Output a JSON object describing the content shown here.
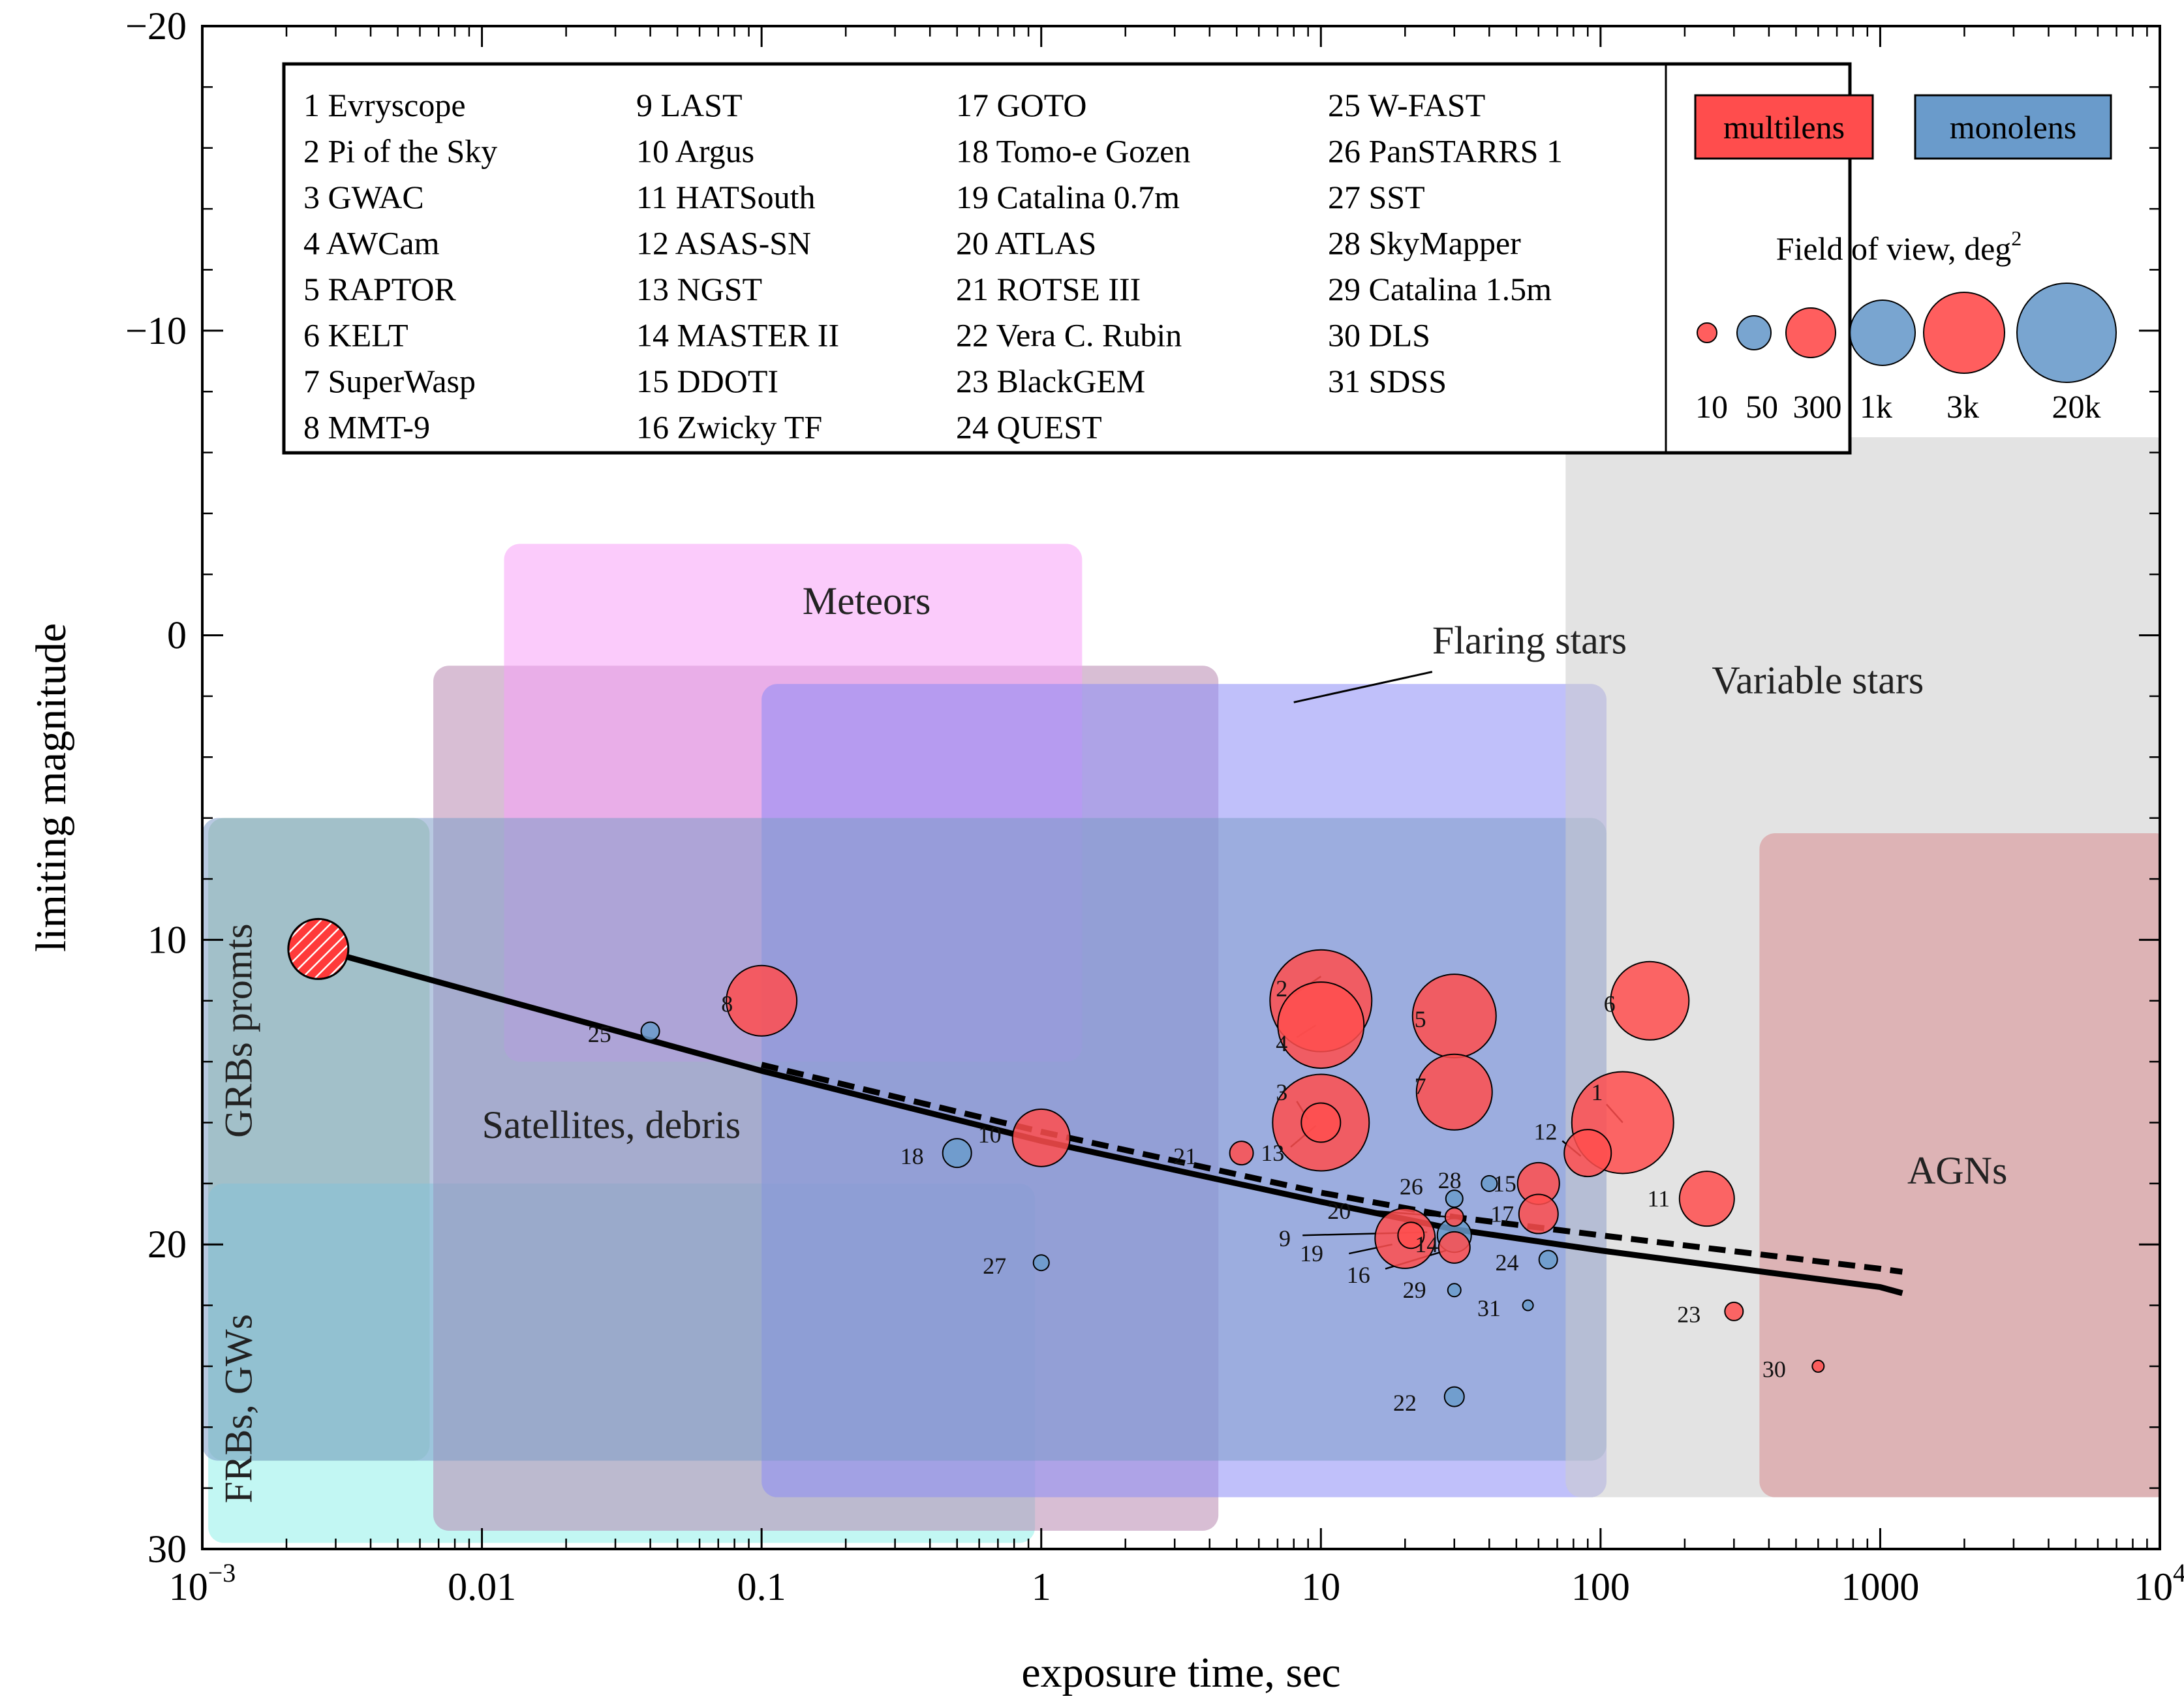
{
  "chart_data": {
    "type": "scatter",
    "title": "",
    "xlabel": "exposure time, sec",
    "ylabel": "limiting magnitude",
    "xscale": "log",
    "xlim": [
      0.001,
      10000
    ],
    "ylim": [
      30,
      -20
    ],
    "x_ticks": [
      {
        "value": 0.001,
        "label": "10",
        "sup": "−3"
      },
      {
        "value": 0.01,
        "label": "0.01",
        "sup": ""
      },
      {
        "value": 0.1,
        "label": "0.1",
        "sup": ""
      },
      {
        "value": 1,
        "label": "1",
        "sup": ""
      },
      {
        "value": 10,
        "label": "10",
        "sup": ""
      },
      {
        "value": 100,
        "label": "100",
        "sup": ""
      },
      {
        "value": 1000,
        "label": "1000",
        "sup": ""
      },
      {
        "value": 10000,
        "label": "10",
        "sup": "4"
      }
    ],
    "y_ticks": [
      {
        "value": -20,
        "label": "−20"
      },
      {
        "value": -10,
        "label": "−10"
      },
      {
        "value": 0,
        "label": "0"
      },
      {
        "value": 10,
        "label": "10"
      },
      {
        "value": 20,
        "label": "20"
      },
      {
        "value": 30,
        "label": "30"
      }
    ],
    "regions": [
      {
        "name": "GRBs promts",
        "x": [
          0.00105,
          0.0065
        ],
        "y": [
          6,
          27.1
        ],
        "color": "#a8d8a0",
        "label_x": 0.0015,
        "label_y": 16.5,
        "vertical": true
      },
      {
        "name": "FRBs, GWs",
        "x": [
          0.00105,
          0.95
        ],
        "y": [
          18,
          29.8
        ],
        "color": "#8ff0ea",
        "label_x": 0.0015,
        "label_y": 28.5,
        "vertical": true
      },
      {
        "name": "Satellites, debris",
        "x": [
          0.0067,
          4.3
        ],
        "y": [
          1,
          29.4
        ],
        "color": "#b888b0",
        "label_x": 0.01,
        "label_y": 16.5,
        "vertical": false
      },
      {
        "name": "Meteors",
        "x": [
          0.012,
          1.4
        ],
        "y": [
          -3,
          14
        ],
        "color": "#f7a0f7",
        "label_x": 0.14,
        "label_y": -0.7,
        "vertical": false
      },
      {
        "name": "Flaring stars",
        "x": [
          0.1,
          105
        ],
        "y": [
          1.6,
          28.3
        ],
        "color": "#8c8cf5",
        "label_x": 25,
        "label_y": 0.6,
        "vertical": false
      },
      {
        "name": "",
        "x": [
          0.001,
          105
        ],
        "y": [
          6,
          27.1
        ],
        "color": "#7e9cc8",
        "label_x": 0,
        "label_y": 0,
        "vertical": false
      },
      {
        "name": "Variable stars",
        "x": [
          75,
          11000
        ],
        "y": [
          -6.5,
          28.3
        ],
        "color": "#cccccc",
        "label_x": 250,
        "label_y": 1.9,
        "vertical": false
      },
      {
        "name": "AGNs",
        "x": [
          370,
          11000
        ],
        "y": [
          6.5,
          28.3
        ],
        "color": "#d88c90",
        "label_x": 1250,
        "label_y": 18,
        "vertical": false
      }
    ],
    "flaring_pointer": {
      "x": [
        25,
        8
      ],
      "y": [
        1.2,
        2.2
      ]
    },
    "series": [
      {
        "name": "fit (solid)",
        "style": "solid",
        "x": [
          0.0026,
          0.1,
          1,
          10,
          30,
          100,
          1000,
          1200
        ],
        "y": [
          10.3,
          14.3,
          16.6,
          18.6,
          19.5,
          20.2,
          21.4,
          21.6
        ]
      },
      {
        "name": "fit (dashed)",
        "style": "dashed",
        "x": [
          0.1,
          1,
          10,
          30,
          100,
          1000,
          1200
        ],
        "y": [
          14.1,
          16.3,
          18.3,
          19.1,
          19.7,
          20.8,
          20.9
        ]
      }
    ],
    "special_point": {
      "x": 0.0026,
      "y": 10.3,
      "r": 46,
      "note": "hatched"
    },
    "points": [
      {
        "id": "1",
        "name": "Evryscope",
        "x": 120,
        "y": 16,
        "type": "multilens",
        "r": 78,
        "lx": 102,
        "ly": 15.0,
        "px": [
          105,
          120
        ],
        "py": [
          15.4,
          16.0
        ]
      },
      {
        "id": "2",
        "name": "Pi of the Sky",
        "x": 10,
        "y": 12,
        "type": "multilens",
        "r": 78,
        "lx": 7.6,
        "ly": 11.6,
        "px": [
          8,
          10
        ],
        "py": [
          11.8,
          11.2
        ]
      },
      {
        "id": "3",
        "name": "GWAC",
        "x": 10,
        "y": 16,
        "type": "multilens",
        "r": 74,
        "lx": 7.6,
        "ly": 15.0,
        "px": [
          8.2,
          9.0
        ],
        "py": [
          15.3,
          15.9
        ]
      },
      {
        "id": "4",
        "name": "AWCam",
        "x": 10,
        "y": 12.8,
        "type": "multilens",
        "r": 66,
        "lx": 7.6,
        "ly": 13.4,
        "px": [
          8.2,
          9.6
        ],
        "py": [
          13.2,
          12.8
        ]
      },
      {
        "id": "5",
        "name": "RAPTOR",
        "x": 30,
        "y": 12.5,
        "type": "multilens",
        "r": 64,
        "lx": 23.8,
        "ly": 12.6,
        "px": [],
        "py": []
      },
      {
        "id": "6",
        "name": "KELT",
        "x": 150,
        "y": 12,
        "type": "multilens",
        "r": 60,
        "lx": 113,
        "ly": 12.1,
        "px": [],
        "py": []
      },
      {
        "id": "7",
        "name": "SuperWasp",
        "x": 30,
        "y": 15,
        "type": "multilens",
        "r": 58,
        "lx": 23.8,
        "ly": 14.8,
        "px": [],
        "py": []
      },
      {
        "id": "8",
        "name": "MMT-9",
        "x": 0.1,
        "y": 12,
        "type": "multilens",
        "r": 54,
        "lx": 0.079,
        "ly": 12.1,
        "px": [],
        "py": []
      },
      {
        "id": "9",
        "name": "LAST",
        "x": 21,
        "y": 19.7,
        "type": "multilens",
        "r": 20,
        "lx": 7.8,
        "ly": 19.8,
        "px": [
          8.6,
          24
        ],
        "py": [
          19.7,
          19.6
        ]
      },
      {
        "id": "10",
        "name": "Argus",
        "x": 1,
        "y": 16.5,
        "type": "multilens",
        "r": 44,
        "lx": 0.72,
        "ly": 16.4,
        "px": [],
        "py": []
      },
      {
        "id": "11",
        "name": "HATSouth",
        "x": 240,
        "y": 18.5,
        "type": "multilens",
        "r": 42,
        "lx": 177,
        "ly": 18.5,
        "px": [],
        "py": []
      },
      {
        "id": "12",
        "name": "ASAS-SN",
        "x": 90,
        "y": 17,
        "type": "multilens",
        "r": 36,
        "lx": 70,
        "ly": 16.3,
        "px": [
          73,
          85
        ],
        "py": [
          16.6,
          17.1
        ]
      },
      {
        "id": "13",
        "name": "NGST",
        "x": 10,
        "y": 16,
        "type": "multilens",
        "r": 30,
        "lx": 7.4,
        "ly": 17.0,
        "px": [
          7.8,
          9.6
        ],
        "py": [
          16.8,
          16.1
        ]
      },
      {
        "id": "14",
        "name": "MASTER II",
        "x": 30,
        "y": 20.1,
        "type": "multilens",
        "r": 24,
        "lx": 26.3,
        "ly": 20.0,
        "px": [],
        "py": []
      },
      {
        "id": "15",
        "name": "DDOTI",
        "x": 60,
        "y": 18,
        "type": "multilens",
        "r": 32,
        "lx": 50,
        "ly": 18.0,
        "px": [],
        "py": []
      },
      {
        "id": "16",
        "name": "Zwicky TF",
        "x": 30,
        "y": 19.7,
        "type": "monolens",
        "r": 26,
        "lx": 15,
        "ly": 21.0,
        "px": [
          17,
          28
        ],
        "py": [
          20.8,
          20.2
        ]
      },
      {
        "id": "17",
        "name": "GOTO",
        "x": 60,
        "y": 19,
        "type": "multilens",
        "r": 30,
        "lx": 49,
        "ly": 19.0,
        "px": [],
        "py": []
      },
      {
        "id": "18",
        "name": "Tomo-e Gozen",
        "x": 0.5,
        "y": 17,
        "type": "monolens",
        "r": 22,
        "lx": 0.38,
        "ly": 17.1,
        "px": [],
        "py": []
      },
      {
        "id": "19",
        "name": "Catalina 0.7m",
        "x": 20,
        "y": 19.8,
        "type": "multilens",
        "r": 46,
        "lx": 10.2,
        "ly": 20.3,
        "px": [
          12.6,
          18
        ],
        "py": [
          20.3,
          20.0
        ]
      },
      {
        "id": "20",
        "name": "ATLAS",
        "x": 30,
        "y": 19.1,
        "type": "multilens",
        "r": 14,
        "lx": 12.8,
        "ly": 18.9,
        "px": [
          15.5,
          29
        ],
        "py": [
          18.9,
          19.1
        ]
      },
      {
        "id": "21",
        "name": "ROTSE III",
        "x": 5.2,
        "y": 17,
        "type": "multilens",
        "r": 18,
        "lx": 3.6,
        "ly": 17.1,
        "px": [],
        "py": []
      },
      {
        "id": "22",
        "name": "Vera C. Rubin",
        "x": 30,
        "y": 25,
        "type": "monolens",
        "r": 15,
        "lx": 22,
        "ly": 25.2,
        "px": [],
        "py": []
      },
      {
        "id": "23",
        "name": "BlackGEM",
        "x": 300,
        "y": 22.2,
        "type": "multilens",
        "r": 14,
        "lx": 228,
        "ly": 22.3,
        "px": [],
        "py": []
      },
      {
        "id": "24",
        "name": "QUEST",
        "x": 65,
        "y": 20.5,
        "type": "monolens",
        "r": 14,
        "lx": 51,
        "ly": 20.6,
        "px": [],
        "py": []
      },
      {
        "id": "25",
        "name": "W-FAST",
        "x": 0.04,
        "y": 13,
        "type": "monolens",
        "r": 14,
        "lx": 0.029,
        "ly": 13.1,
        "px": [],
        "py": []
      },
      {
        "id": "26",
        "name": "PanSTARRS 1",
        "x": 30,
        "y": 18.5,
        "type": "monolens",
        "r": 13,
        "lx": 23.2,
        "ly": 18.1,
        "px": [],
        "py": []
      },
      {
        "id": "27",
        "name": "SST",
        "x": 1,
        "y": 20.6,
        "type": "monolens",
        "r": 12,
        "lx": 0.75,
        "ly": 20.7,
        "px": [],
        "py": []
      },
      {
        "id": "28",
        "name": "SkyMapper",
        "x": 40,
        "y": 18,
        "type": "monolens",
        "r": 12,
        "lx": 31.8,
        "ly": 17.9,
        "px": [],
        "py": []
      },
      {
        "id": "29",
        "name": "Catalina 1.5m",
        "x": 30,
        "y": 21.5,
        "type": "monolens",
        "r": 10,
        "lx": 23.8,
        "ly": 21.5,
        "px": [],
        "py": []
      },
      {
        "id": "30",
        "name": "DLS",
        "x": 600,
        "y": 24,
        "type": "multilens",
        "r": 9,
        "lx": 460,
        "ly": 24.1,
        "px": [],
        "py": []
      },
      {
        "id": "31",
        "name": "SDSS",
        "x": 55,
        "y": 22,
        "type": "monolens",
        "r": 8,
        "lx": 44,
        "ly": 22.1,
        "px": [],
        "py": []
      }
    ],
    "legend": {
      "placement": "top",
      "entries": [
        "1  Evryscope",
        "2  Pi of the Sky",
        "3  GWAC",
        "4  AWCam",
        "5  RAPTOR",
        "6  KELT",
        "7  SuperWasp",
        "8  MMT-9",
        "9  LAST",
        "10  Argus",
        "11  HATSouth",
        "12  ASAS-SN",
        "13  NGST",
        "14  MASTER II",
        "15  DDOTI",
        "16  Zwicky TF",
        "17  GOTO",
        "18  Tomo-e Gozen",
        "19  Catalina 0.7m",
        "20  ATLAS",
        "21  ROTSE III",
        "22  Vera C. Rubin",
        "23  BlackGEM",
        "24  QUEST",
        "25  W-FAST",
        "26  PanSTARRS 1",
        "27  SST",
        "28  SkyMapper",
        "29  Catalina 1.5m",
        "30  DLS",
        "31  SDSS"
      ],
      "type_labels": {
        "multilens": "multilens",
        "monolens": "monolens"
      },
      "fov_title": "Field of view, deg",
      "fov_title_sup": "2",
      "fov_sizes": [
        {
          "label": "10",
          "type": "multilens",
          "r": 15
        },
        {
          "label": "50",
          "type": "monolens",
          "r": 26
        },
        {
          "label": "300",
          "type": "multilens",
          "r": 38
        },
        {
          "label": "1k",
          "type": "monolens",
          "r": 50
        },
        {
          "label": "3k",
          "type": "multilens",
          "r": 62
        },
        {
          "label": "20k",
          "type": "monolens",
          "r": 76
        }
      ]
    },
    "colors": {
      "multilens": "#ff4d4d",
      "monolens": "#6a9bcb",
      "special": "#ff3a3a",
      "fit": "#000000"
    }
  }
}
